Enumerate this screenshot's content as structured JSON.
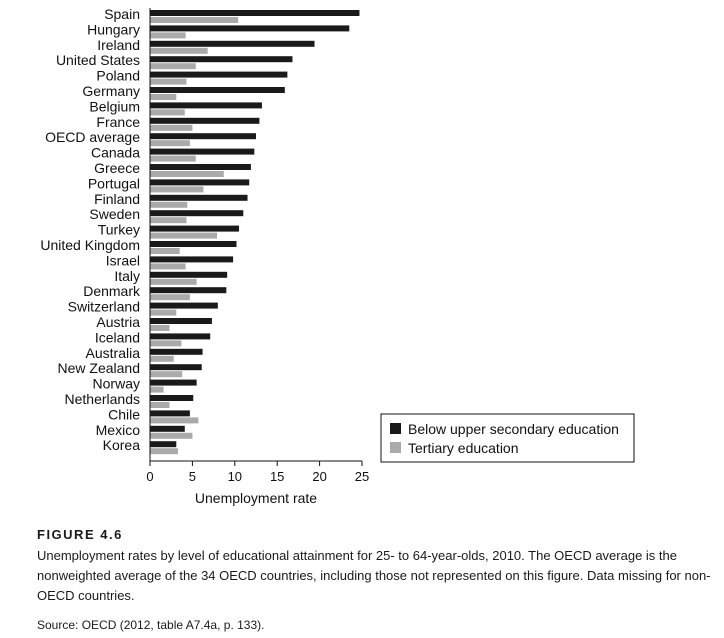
{
  "figure": {
    "label": "FIGURE 4.6",
    "caption": "Unemployment rates by level of educational attainment for 25- to 64-year-olds, 2010. The OECD average is the nonweighted average of the 34 OECD countries, including those not represented on this figure. Data missing for non-OECD countries.",
    "source": "Source: OECD (2012, table A7.4a, p. 133)."
  },
  "chart_data": {
    "type": "bar",
    "orientation": "horizontal",
    "categories": [
      "Spain",
      "Hungary",
      "Ireland",
      "United States",
      "Poland",
      "Germany",
      "Belgium",
      "France",
      "OECD average",
      "Canada",
      "Greece",
      "Portugal",
      "Finland",
      "Sweden",
      "Turkey",
      "United Kingdom",
      "Israel",
      "Italy",
      "Denmark",
      "Switzerland",
      "Austria",
      "Iceland",
      "Australia",
      "New Zealand",
      "Norway",
      "Netherlands",
      "Chile",
      "Mexico",
      "Korea"
    ],
    "series": [
      {
        "name": "Below upper secondary education",
        "color": "#1a1a1a",
        "values": [
          24.7,
          23.5,
          19.4,
          16.8,
          16.2,
          15.9,
          13.2,
          12.9,
          12.5,
          12.3,
          11.9,
          11.7,
          11.5,
          11.0,
          10.5,
          10.2,
          9.8,
          9.1,
          9.0,
          8.0,
          7.3,
          7.1,
          6.2,
          6.1,
          5.5,
          5.1,
          4.7,
          4.1,
          3.1
        ],
        "values_note": null
      },
      {
        "name": "Tertiary education",
        "color": "#aaaaaa",
        "values": [
          10.4,
          4.2,
          6.8,
          5.4,
          4.3,
          3.1,
          4.1,
          5.0,
          4.7,
          5.4,
          8.7,
          6.3,
          4.4,
          4.3,
          7.9,
          3.5,
          4.2,
          5.5,
          4.7,
          3.1,
          2.3,
          3.7,
          2.8,
          3.8,
          1.6,
          2.3,
          5.7,
          5.0,
          3.3
        ]
      }
    ],
    "xlabel": "Unemployment rate",
    "xlim": [
      0,
      25
    ],
    "xticks": [
      0,
      5,
      10,
      15,
      20,
      25
    ],
    "grid": false,
    "legend_position": "bottom-right"
  }
}
